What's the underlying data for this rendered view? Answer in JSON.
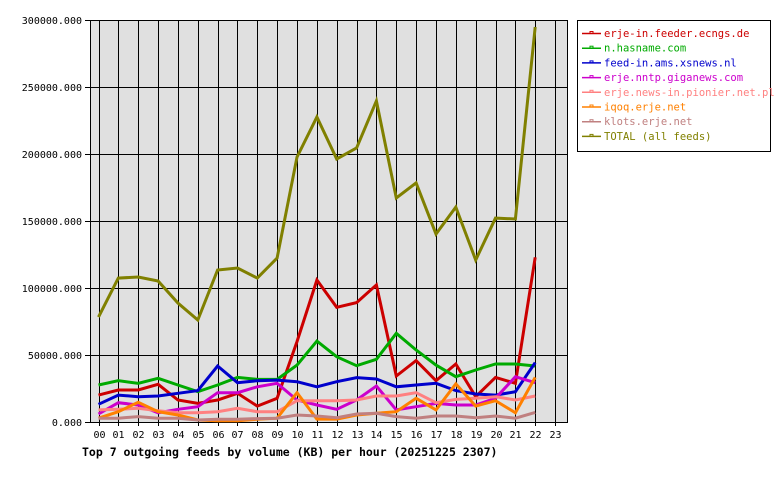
{
  "chart_data": {
    "type": "line",
    "title": "Top 7 outgoing feeds by volume (KB) per hour (20251225 2307)",
    "xlabel": "",
    "ylabel": "",
    "x": [
      "00",
      "01",
      "02",
      "03",
      "04",
      "05",
      "06",
      "07",
      "08",
      "09",
      "10",
      "11",
      "12",
      "13",
      "14",
      "15",
      "16",
      "17",
      "18",
      "19",
      "20",
      "21",
      "22",
      "23"
    ],
    "ylim": [
      0,
      300000
    ],
    "yticks": [
      "0.000",
      "50000.000",
      "100000.000",
      "150000.000",
      "200000.000",
      "250000.000",
      "300000.000"
    ],
    "ytick_values": [
      0,
      50000,
      100000,
      150000,
      200000,
      250000,
      300000
    ],
    "grid": true,
    "legend_position": "right",
    "series": [
      {
        "name": "erje-in.feeder.ecngs.de",
        "color": "#cc0000",
        "values": [
          20100,
          23900,
          23900,
          28100,
          16400,
          13900,
          16400,
          21400,
          11900,
          17700,
          60000,
          106000,
          85600,
          89100,
          102300,
          34300,
          45800,
          30800,
          43300,
          18900,
          33300,
          28900,
          122900
        ]
      },
      {
        "name": "n.hasname.com",
        "color": "#00aa00",
        "values": [
          27600,
          30800,
          28900,
          32600,
          27600,
          22600,
          27600,
          33300,
          31800,
          31800,
          42500,
          60400,
          48700,
          42000,
          46800,
          66200,
          53700,
          42500,
          33800,
          38800,
          43300,
          43300,
          41800
        ]
      },
      {
        "name": "feed-in.ams.xsnews.nl",
        "color": "#0000cc",
        "values": [
          13200,
          20100,
          18900,
          19400,
          21400,
          23400,
          41800,
          29300,
          30800,
          31300,
          30100,
          26300,
          30100,
          33100,
          32100,
          26300,
          27600,
          28900,
          23400,
          20900,
          20100,
          22600,
          44300
        ]
      },
      {
        "name": "erje.nntp.giganews.com",
        "color": "#cc00cc",
        "values": [
          6000,
          14400,
          12700,
          6900,
          9500,
          11400,
          21900,
          21900,
          26300,
          28900,
          16400,
          12700,
          9500,
          16400,
          26900,
          9000,
          11400,
          13900,
          12700,
          12700,
          17700,
          33800,
          29300
        ]
      },
      {
        "name": "erje.news-in.pionier.net.pl",
        "color": "#ff8080",
        "values": [
          9000,
          9500,
          10200,
          8400,
          6900,
          6900,
          7700,
          10200,
          7700,
          7700,
          15900,
          15900,
          15900,
          16400,
          19400,
          19400,
          21900,
          14400,
          16900,
          17700,
          18900,
          16400,
          19400
        ]
      },
      {
        "name": "iqoq.erje.net",
        "color": "#ff8000",
        "values": [
          2800,
          7700,
          14700,
          7700,
          5200,
          1500,
          1000,
          1000,
          2000,
          2800,
          21900,
          2200,
          2200,
          5200,
          6500,
          7700,
          17700,
          9000,
          28400,
          11900,
          15900,
          6900,
          33300
        ]
      },
      {
        "name": "klots.erje.net",
        "color": "#c08080",
        "values": [
          2800,
          2800,
          4000,
          2800,
          2800,
          1500,
          2000,
          2000,
          2500,
          2800,
          5200,
          4500,
          3200,
          6000,
          6500,
          4000,
          2800,
          4500,
          4500,
          3200,
          4500,
          2800,
          7200
        ]
      },
      {
        "name": "TOTAL (all feeds)",
        "color": "#808000",
        "values": [
          78300,
          107400,
          108200,
          105200,
          88800,
          76100,
          113400,
          114900,
          107400,
          122400,
          197700,
          227600,
          196300,
          204500,
          239600,
          167200,
          178400,
          140300,
          160400,
          120900,
          152200,
          151500,
          294800
        ]
      }
    ]
  },
  "colors": {
    "plot_background": "#e0e0e0",
    "grid": "#000000",
    "legend_border": "#000000"
  }
}
